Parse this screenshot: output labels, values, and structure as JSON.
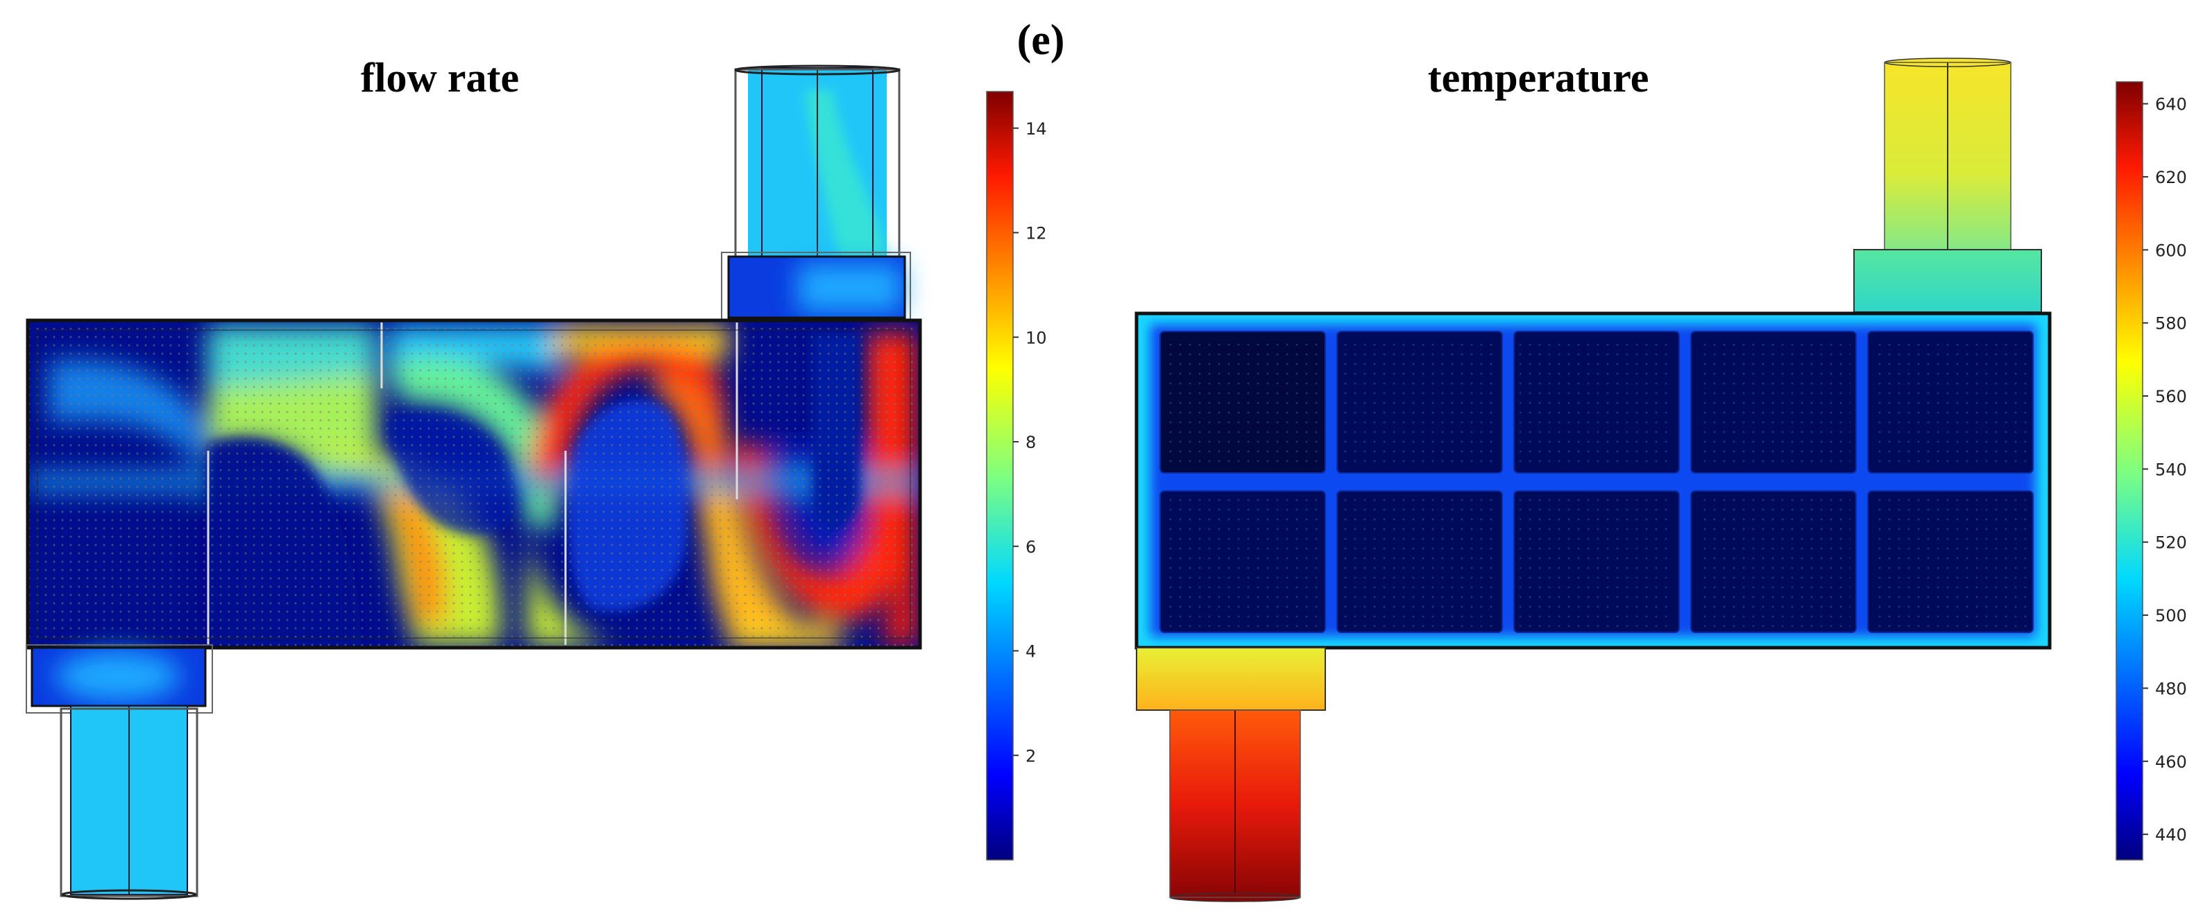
{
  "figure": {
    "panel_label": "(e)",
    "left_panel": {
      "title": "flow rate",
      "colorbar": {
        "min": 0,
        "max": 14.7,
        "ticks": [
          "2",
          "4",
          "6",
          "8",
          "10",
          "12",
          "14"
        ],
        "tick_values": [
          2,
          4,
          6,
          8,
          10,
          12,
          14
        ]
      }
    },
    "right_panel": {
      "title": "temperature",
      "colorbar": {
        "min": 433,
        "max": 646,
        "ticks": [
          "440",
          "460",
          "480",
          "500",
          "520",
          "540",
          "560",
          "580",
          "600",
          "620",
          "640"
        ],
        "tick_values": [
          440,
          460,
          480,
          500,
          520,
          540,
          560,
          580,
          600,
          620,
          640
        ]
      }
    },
    "colormap": [
      "#00007f",
      "#0000ff",
      "#007fff",
      "#00ffff",
      "#7fff7f",
      "#ffff00",
      "#ff7f00",
      "#ff0000",
      "#7f0000"
    ]
  }
}
